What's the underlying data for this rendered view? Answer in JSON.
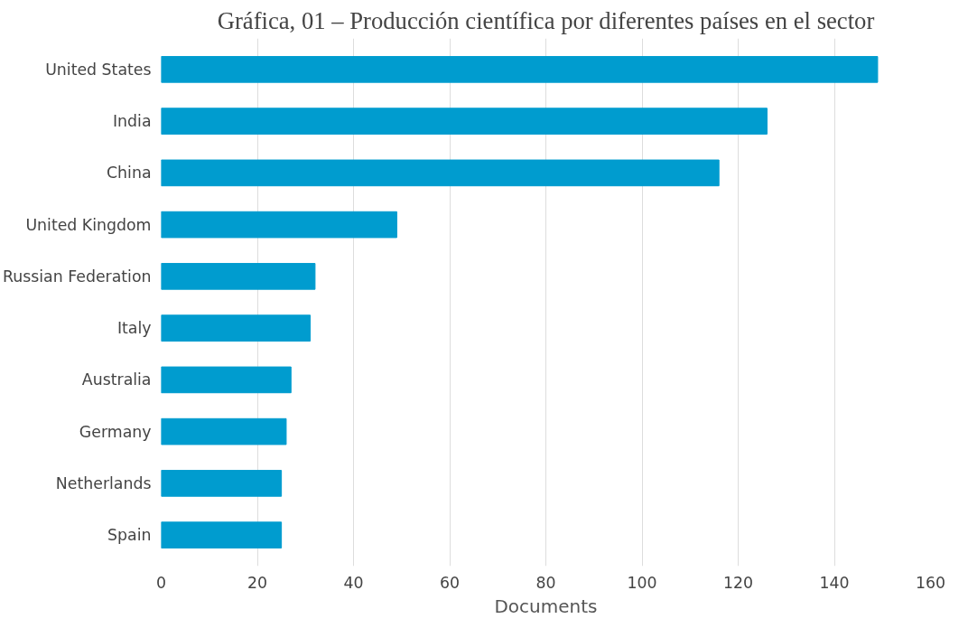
{
  "chart_data": {
    "type": "bar",
    "orientation": "horizontal",
    "title": "Gráfica, 01 – Producción científica por diferentes países en el sector",
    "xlabel": "Documents",
    "categories": [
      "United States",
      "India",
      "China",
      "United Kingdom",
      "Russian Federation",
      "Italy",
      "Australia",
      "Germany",
      "Netherlands",
      "Spain"
    ],
    "values": [
      149,
      126,
      116,
      49,
      32,
      31,
      27,
      26,
      25,
      25
    ],
    "color": "#009ccf",
    "xlim": [
      0,
      160
    ],
    "xticks": [
      0,
      20,
      40,
      60,
      80,
      100,
      120,
      140,
      160
    ],
    "grid": "x"
  }
}
